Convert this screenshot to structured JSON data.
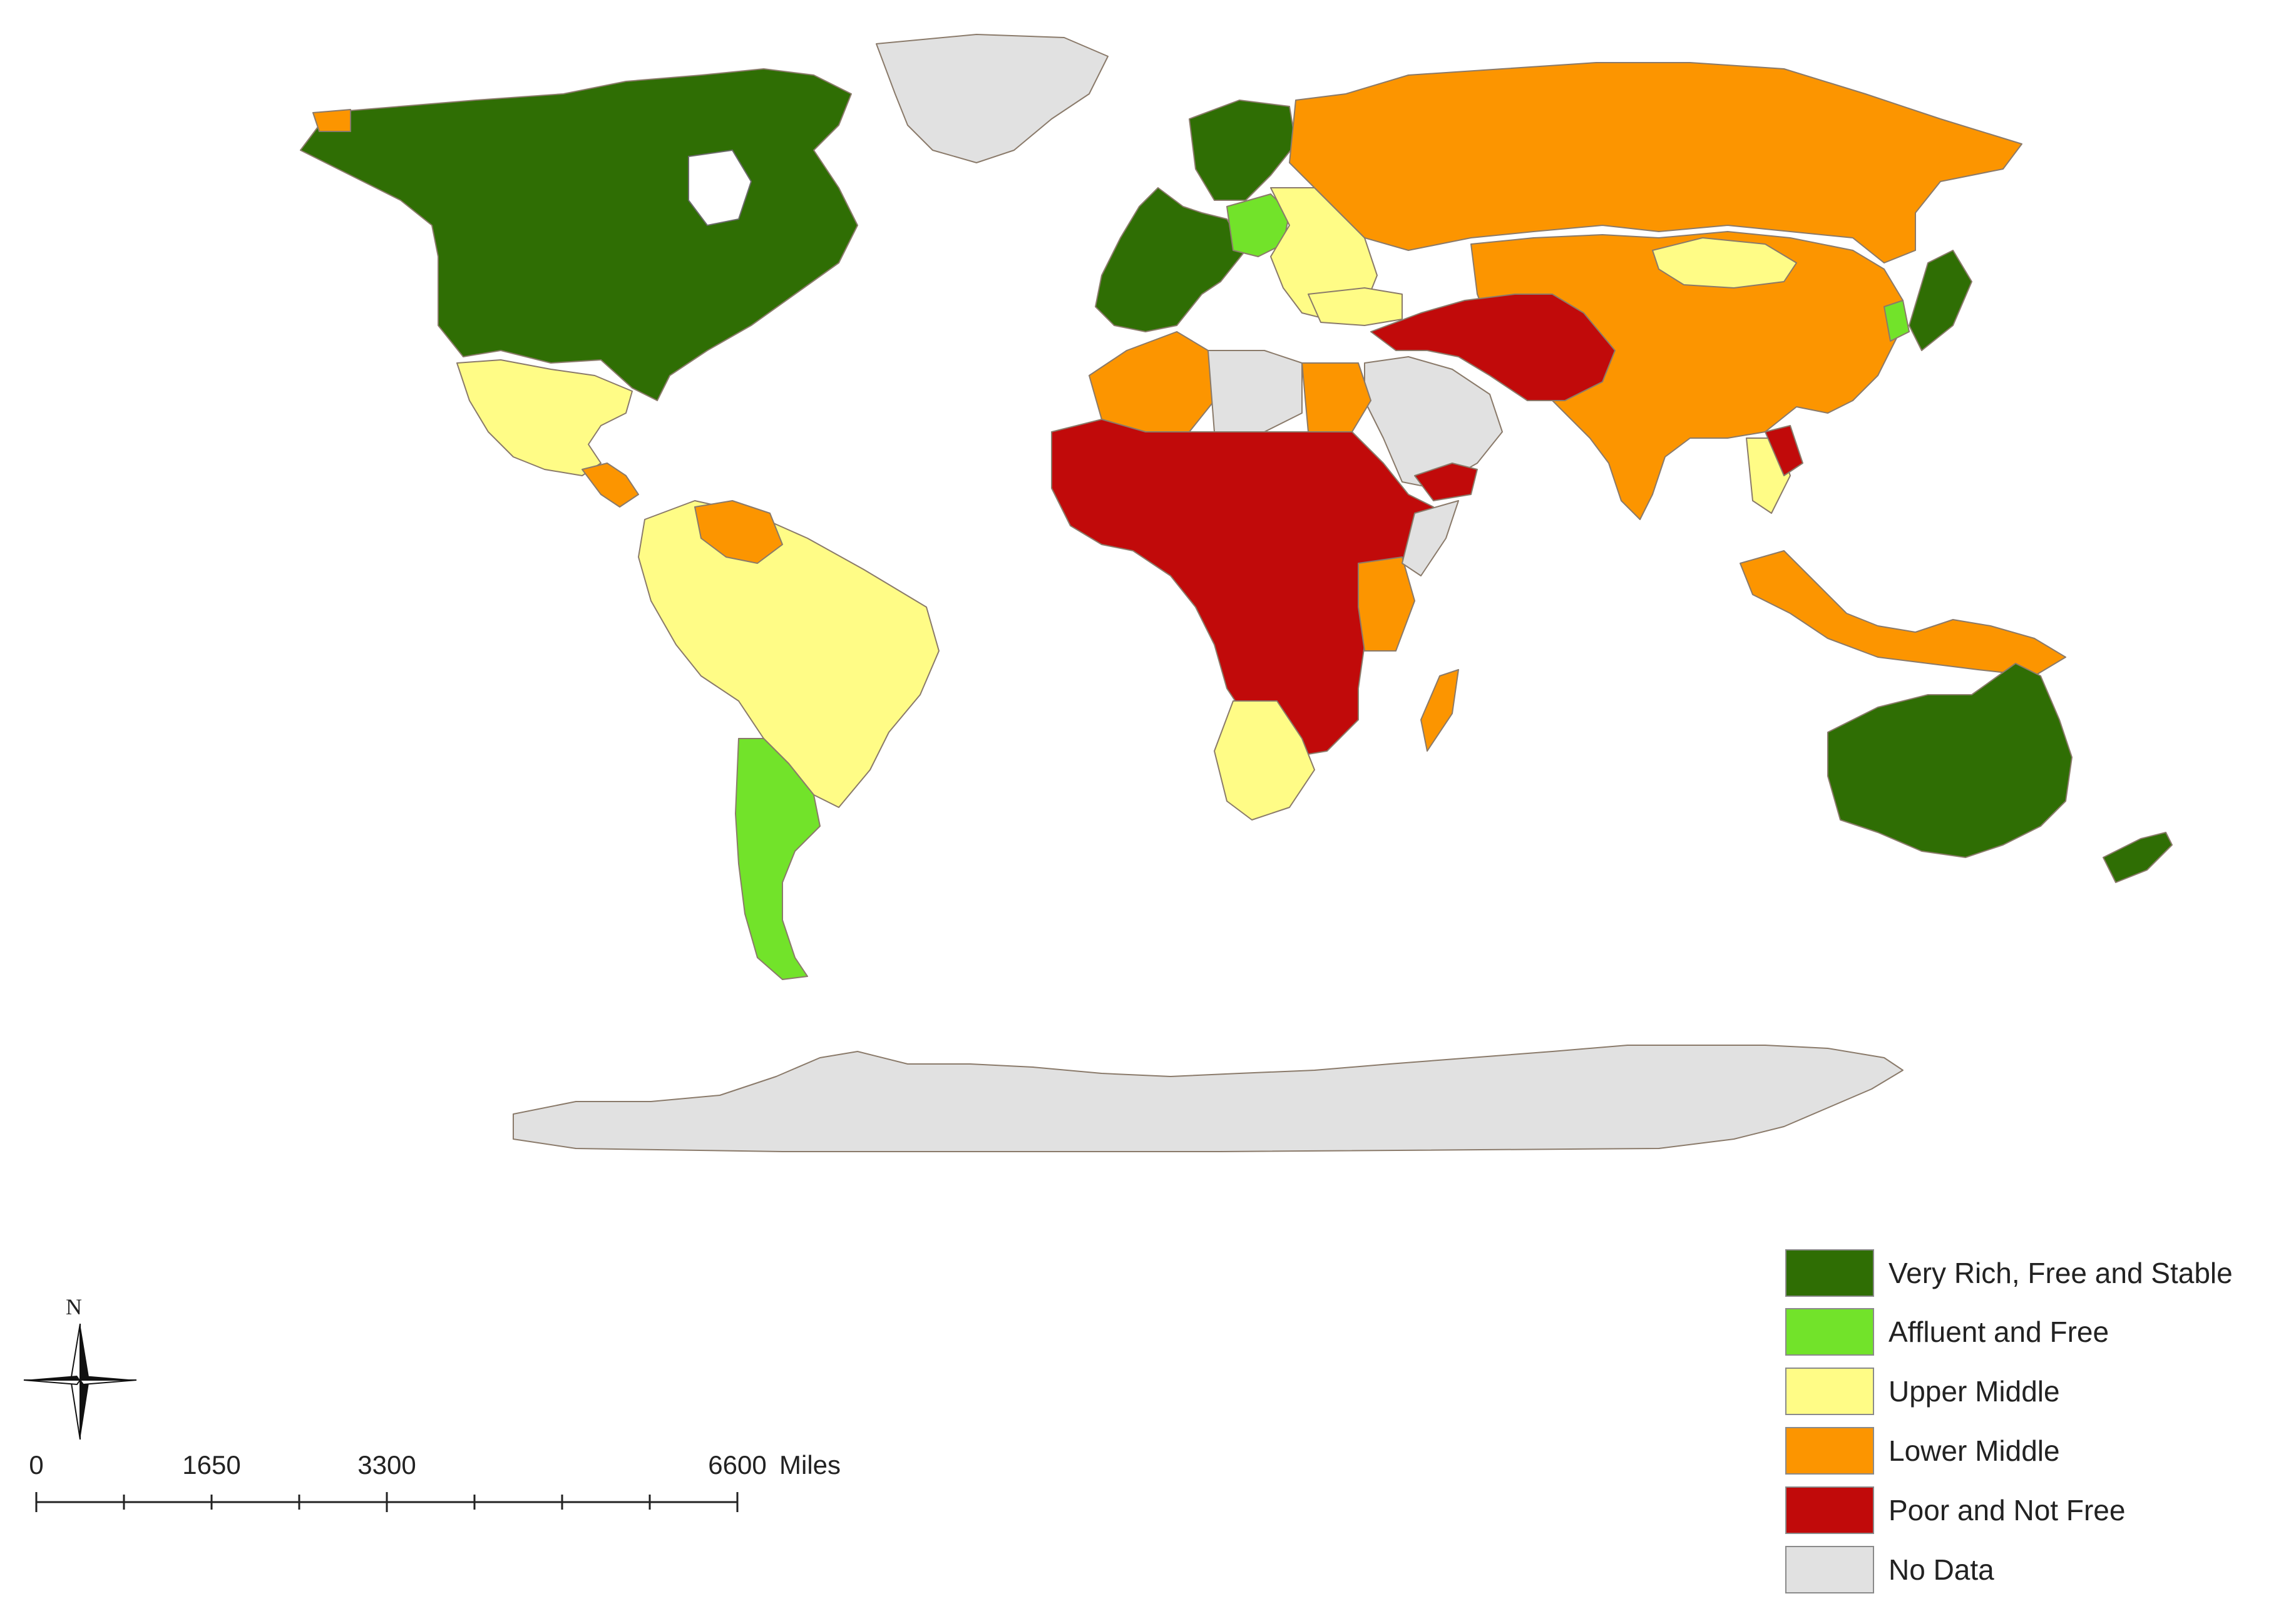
{
  "colors": {
    "very_rich": "#2f6e04",
    "affluent": "#72e32a",
    "upper_middle": "#fffc86",
    "lower_middle": "#fc9500",
    "poor": "#c10a0a",
    "no_data": "#e1e1e1",
    "border": "#8a7a6a",
    "outline_gray": "#6b6b6b"
  },
  "legend": {
    "items": [
      {
        "key": "very_rich",
        "label": "Very Rich, Free and Stable",
        "color": "#2f6e04"
      },
      {
        "key": "affluent",
        "label": "Affluent and Free",
        "color": "#72e32a"
      },
      {
        "key": "upper_middle",
        "label": "Upper Middle",
        "color": "#fffc86"
      },
      {
        "key": "lower_middle",
        "label": "Lower Middle",
        "color": "#fc9500"
      },
      {
        "key": "poor",
        "label": "Poor and Not Free",
        "color": "#c10a0a"
      },
      {
        "key": "no_data",
        "label": "No Data",
        "color": "#e1e1e1"
      }
    ]
  },
  "north_arrow": {
    "label": "N",
    "icon": "north-arrow-icon"
  },
  "scale_bar": {
    "labels": [
      "0",
      "1650",
      "3300",
      "6600"
    ],
    "unit": "Miles"
  }
}
